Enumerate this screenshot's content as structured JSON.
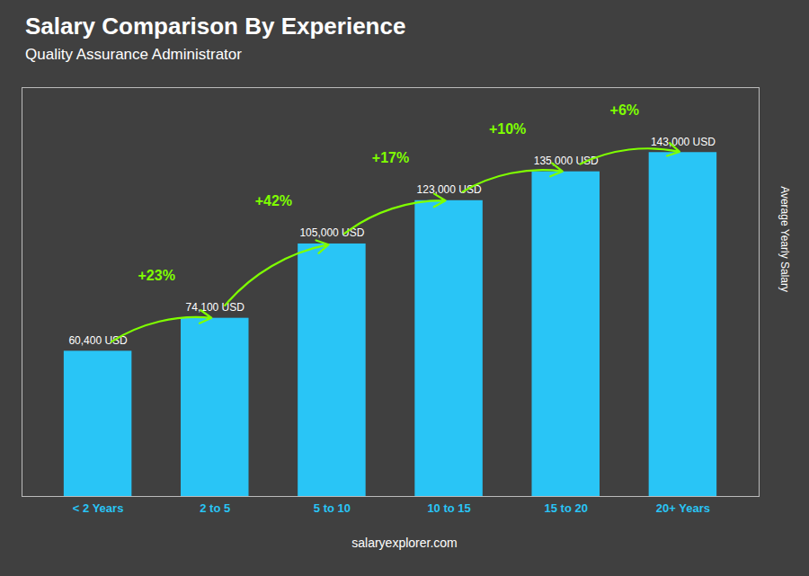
{
  "chart_data": {
    "type": "bar",
    "title": "Salary Comparison By Experience",
    "subtitle": "Quality Assurance Administrator",
    "ylabel": "Average Yearly Salary",
    "categories": [
      "< 2 Years",
      "2 to 5",
      "5 to 10",
      "10 to 15",
      "15 to 20",
      "20+ Years"
    ],
    "values": [
      60400,
      74100,
      105000,
      123000,
      135000,
      143000
    ],
    "value_labels": [
      "60,400 USD",
      "74,100 USD",
      "105,000 USD",
      "123,000 USD",
      "135,000 USD",
      "143,000 USD"
    ],
    "data_labels": true,
    "color": "#29C5F6",
    "ylim": [
      0,
      170000
    ],
    "tick_labels": "x",
    "grid": false,
    "annotations": [
      {
        "text": "+23%",
        "from": "< 2 Years",
        "to": "2 to 5",
        "color": "#7FFF00"
      },
      {
        "text": "+42%",
        "from": "2 to 5",
        "to": "5 to 10",
        "color": "#7FFF00"
      },
      {
        "text": "+17%",
        "from": "5 to 10",
        "to": "10 to 15",
        "color": "#7FFF00"
      },
      {
        "text": "+10%",
        "from": "10 to 15",
        "to": "15 to 20",
        "color": "#7FFF00"
      },
      {
        "text": "+6%",
        "from": "15 to 20",
        "to": "20+ Years",
        "color": "#7FFF00"
      },
      {
        "text": "salaryexplorer.com"
      }
    ]
  }
}
